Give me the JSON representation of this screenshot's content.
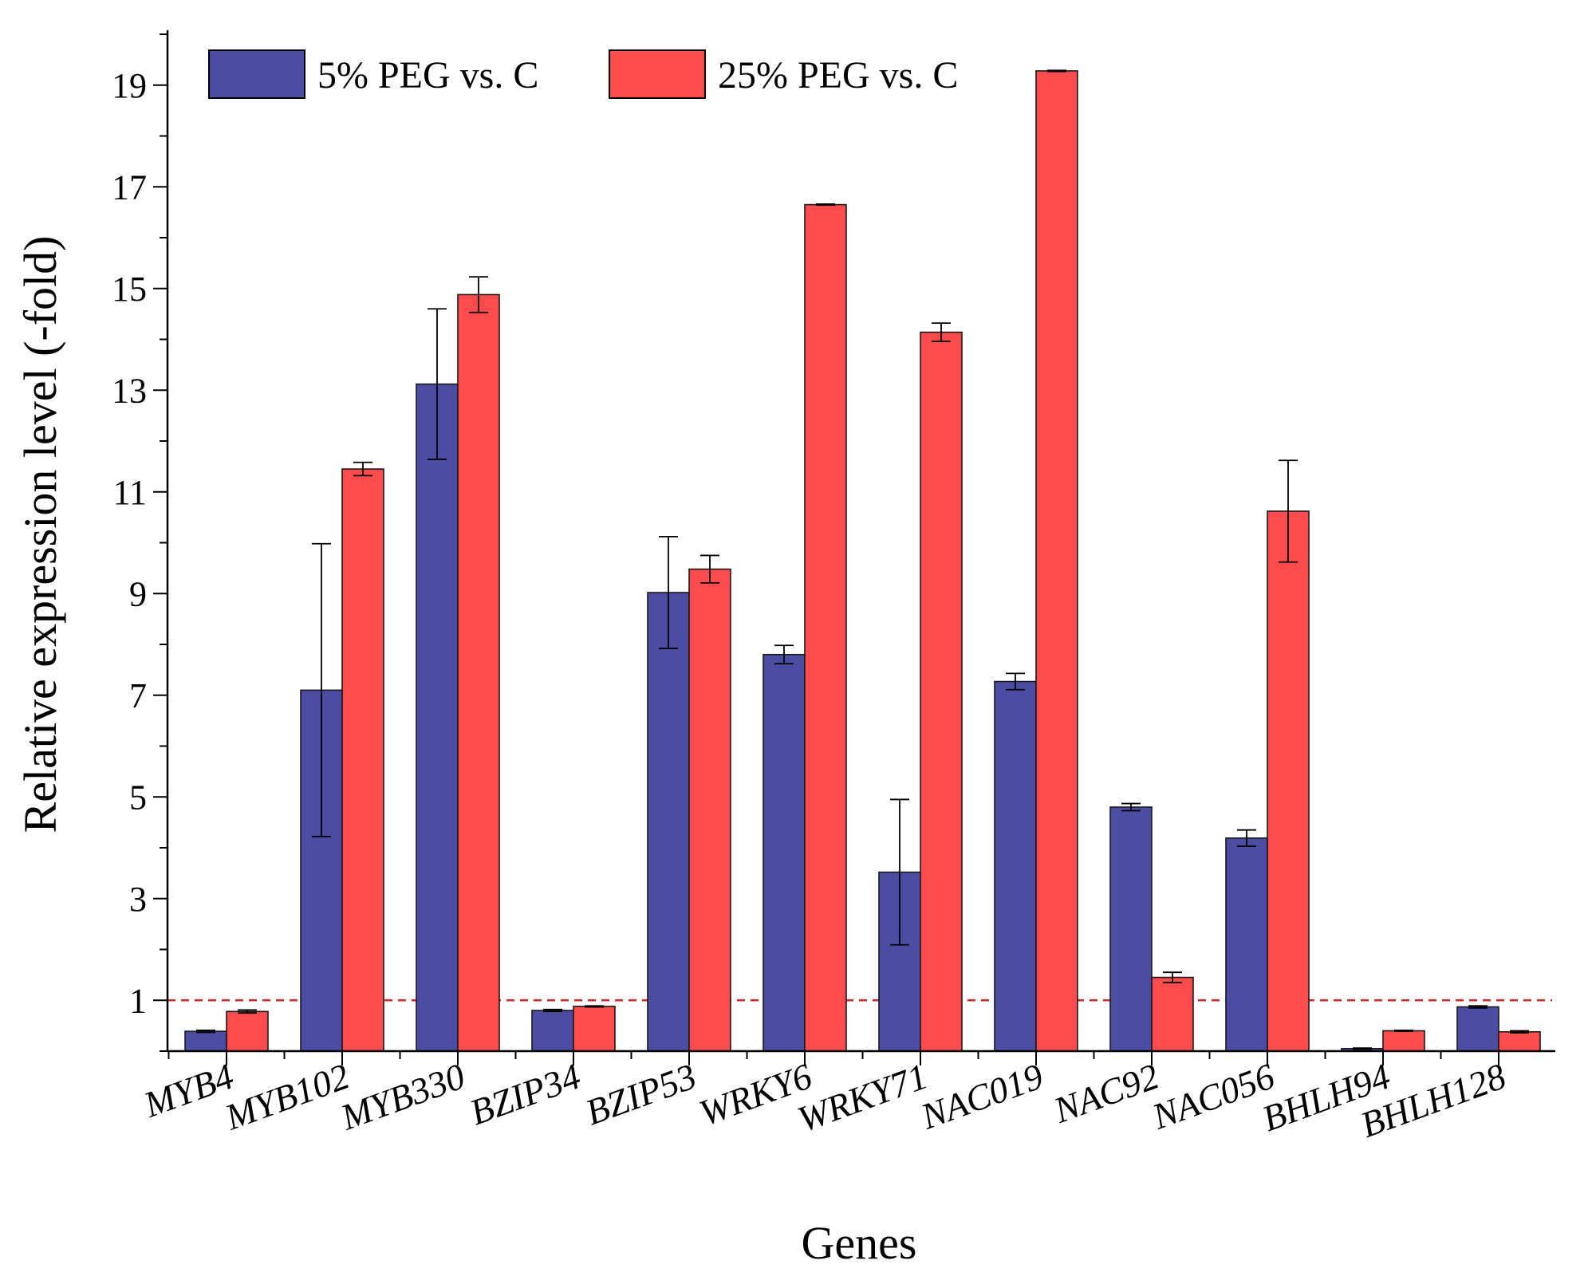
{
  "chart_data": {
    "type": "bar",
    "title": "",
    "xlabel": "Genes",
    "ylabel": "Relative expression level (-fold)",
    "ylim": [
      0,
      20
    ],
    "yticks": [
      1,
      3,
      5,
      7,
      9,
      11,
      13,
      15,
      17,
      19
    ],
    "reference_line": {
      "y": 1,
      "color": "#e0262b",
      "style": "dashed"
    },
    "legend_position": "top-left",
    "categories": [
      "MYB4",
      "MYB102",
      "MYB330",
      "BZIP34",
      "BZIP53",
      "WRKY6",
      "WRKY71",
      "NAC019",
      "NAC92",
      "NAC056",
      "BHLH94",
      "BHLH128"
    ],
    "series": [
      {
        "name": "5% PEG vs. C",
        "color": "#4b4ca3",
        "values": [
          0.39,
          7.1,
          13.12,
          0.8,
          9.02,
          7.8,
          3.52,
          7.27,
          4.8,
          4.19,
          0.05,
          0.87
        ],
        "errors": [
          0.02,
          2.88,
          1.48,
          0.02,
          1.1,
          0.18,
          1.43,
          0.16,
          0.07,
          0.16,
          0.01,
          0.02
        ]
      },
      {
        "name": "25% PEG vs. C",
        "color": "#ff4b4b",
        "values": [
          0.78,
          11.45,
          14.88,
          0.88,
          9.48,
          16.65,
          14.14,
          19.28,
          1.45,
          10.62,
          0.4,
          0.38
        ],
        "errors": [
          0.03,
          0.13,
          0.35,
          0.01,
          0.27,
          0.01,
          0.18,
          0.01,
          0.1,
          1.0,
          0.01,
          0.02
        ]
      }
    ]
  }
}
